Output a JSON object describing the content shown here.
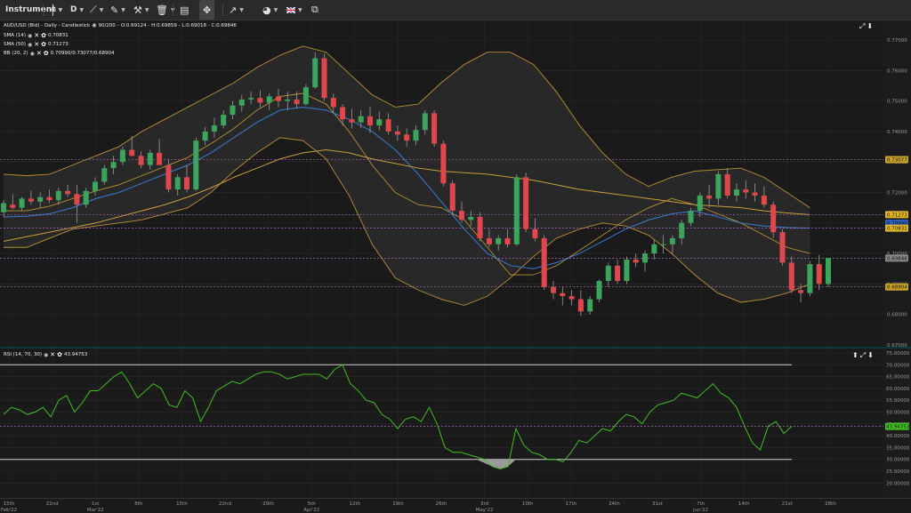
{
  "toolbar": {
    "instrument_label": "Instrument",
    "period_label": "D",
    "candles_icon": "candles-icon",
    "draw_icon": "pen-icon",
    "ruler_icon": "ruler-icon",
    "tools_icon": "tools-icon",
    "trash_icon": "trash-icon",
    "layout_icon": "layout-icon",
    "fullscreen_icon": "crosshair-icon",
    "share_icon": "share-icon",
    "theme_icon": "palette-icon",
    "language": "UK flag",
    "settings_icon": "settings-icon"
  },
  "main_pane": {
    "title": "AUD/USD (Bid) - Daily - Candlestick",
    "range": "90/200",
    "ohlc": "O:0.69124 - H:0.69859 - L:0.69018 - C:0.69846",
    "sma14_label": "SMA (14)",
    "sma14_value": "0.70831",
    "sma50_label": "SMA (50)",
    "sma50_value": "0.71273",
    "bb_label": "BB (20, 2)",
    "bb_value": "0.70990/0.73077/0.68904",
    "y_ticks": [
      "0.77000",
      "0.76000",
      "0.75000",
      "0.74000",
      "0.73000",
      "0.72000",
      "0.71000",
      "0.70000",
      "0.69000",
      "0.68000",
      "0.67000"
    ],
    "badges": [
      {
        "text": "0.73077",
        "color": "#c9a227"
      },
      {
        "text": "0.71273",
        "color": "#e0b826"
      },
      {
        "text": "0.70990",
        "color": "#2a62c6"
      },
      {
        "text": "0.70831",
        "color": "#e0b826"
      },
      {
        "text": "0.69846",
        "color": "#888888"
      },
      {
        "text": "0.68904",
        "color": "#c9a227"
      }
    ]
  },
  "rsi_pane": {
    "label": "RSI (14, 70, 30)",
    "value": "43.94753",
    "y_ticks": [
      "75.00000",
      "70.00000",
      "65.00000",
      "60.00000",
      "55.00000",
      "50.00000",
      "45.00000",
      "40.00000",
      "35.00000",
      "30.00000",
      "25.00000",
      "20.00000"
    ],
    "badge": "43.94753"
  },
  "x_axis": {
    "ticks": [
      "15th Feb'22",
      "22nd",
      "1st Mar'22",
      "8th",
      "15th",
      "22nd",
      "29th",
      "5th Apr'22",
      "12th",
      "19th",
      "26th",
      "3rd May'22",
      "10th",
      "17th",
      "24th",
      "31st",
      "7th Jun'22",
      "14th",
      "21st",
      "28th"
    ]
  },
  "colors": {
    "up": "#3ba55d",
    "down": "#e0474c",
    "sma14": "#3a7bd5",
    "sma50": "#c99e3a",
    "bb": "#b8902f",
    "rsi": "#3fbf1f"
  }
}
